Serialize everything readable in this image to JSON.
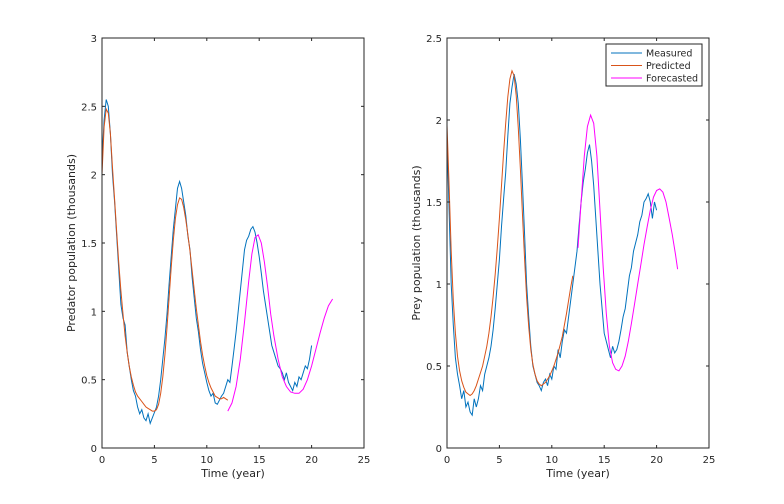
{
  "chart_data": [
    {
      "type": "line",
      "xlabel": "Time (year)",
      "ylabel": "Predator population (thousands)",
      "xlim": [
        0,
        25
      ],
      "ylim": [
        0,
        3
      ],
      "xticks": [
        "0",
        "5",
        "10",
        "15",
        "20",
        "25"
      ],
      "yticks": [
        "0",
        "0.5",
        "1",
        "1.5",
        "2",
        "2.5",
        "3"
      ],
      "grid": false,
      "legend": null,
      "series": [
        {
          "name": "Measured",
          "color": "#0072BD",
          "x": [
            0,
            0.2,
            0.4,
            0.6,
            0.8,
            1.0,
            1.2,
            1.4,
            1.6,
            1.8,
            2.0,
            2.2,
            2.4,
            2.6,
            2.8,
            3.0,
            3.2,
            3.4,
            3.6,
            3.8,
            4.0,
            4.2,
            4.4,
            4.6,
            4.8,
            5.0,
            5.2,
            5.4,
            5.6,
            5.8,
            6.0,
            6.2,
            6.4,
            6.6,
            6.8,
            7.0,
            7.2,
            7.4,
            7.6,
            7.8,
            8.0,
            8.2,
            8.4,
            8.6,
            8.8,
            9.0,
            9.2,
            9.4,
            9.6,
            9.8,
            10.0,
            10.2,
            10.4,
            10.6,
            10.8,
            11.0,
            11.2,
            11.4,
            11.6,
            11.8,
            12.0,
            12.2,
            12.4,
            12.6,
            12.8,
            13.0,
            13.2,
            13.4,
            13.6,
            13.8,
            14.0,
            14.2,
            14.4,
            14.6,
            14.8,
            15.0,
            15.2,
            15.4,
            15.6,
            15.8,
            16.0,
            16.2,
            16.4,
            16.6,
            16.8,
            17.0,
            17.2,
            17.4,
            17.6,
            17.8,
            18.0,
            18.2,
            18.4,
            18.6,
            18.8,
            19.0,
            19.2,
            19.4,
            19.6,
            19.8,
            20.0
          ],
          "y": [
            2.1,
            2.4,
            2.55,
            2.5,
            2.3,
            2.0,
            1.8,
            1.55,
            1.3,
            1.05,
            0.95,
            0.9,
            0.7,
            0.6,
            0.5,
            0.42,
            0.38,
            0.3,
            0.25,
            0.28,
            0.22,
            0.2,
            0.25,
            0.18,
            0.22,
            0.26,
            0.3,
            0.38,
            0.5,
            0.65,
            0.8,
            0.98,
            1.2,
            1.4,
            1.6,
            1.75,
            1.9,
            1.95,
            1.9,
            1.8,
            1.7,
            1.55,
            1.45,
            1.25,
            1.1,
            0.95,
            0.85,
            0.72,
            0.62,
            0.55,
            0.48,
            0.42,
            0.38,
            0.4,
            0.33,
            0.32,
            0.35,
            0.38,
            0.4,
            0.45,
            0.5,
            0.48,
            0.6,
            0.72,
            0.85,
            1.0,
            1.15,
            1.3,
            1.45,
            1.52,
            1.55,
            1.6,
            1.62,
            1.58,
            1.5,
            1.4,
            1.28,
            1.15,
            1.05,
            0.95,
            0.85,
            0.75,
            0.7,
            0.65,
            0.6,
            0.58,
            0.55,
            0.5,
            0.55,
            0.48,
            0.45,
            0.42,
            0.48,
            0.45,
            0.52,
            0.5,
            0.55,
            0.6,
            0.58,
            0.65,
            0.75
          ]
        },
        {
          "name": "Predicted",
          "color": "#D95319",
          "x": [
            0,
            0.2,
            0.4,
            0.6,
            0.8,
            1.0,
            1.2,
            1.4,
            1.6,
            1.8,
            2.0,
            2.2,
            2.4,
            2.6,
            2.8,
            3.0,
            3.2,
            3.4,
            3.6,
            3.8,
            4.0,
            4.2,
            4.4,
            4.6,
            4.8,
            5.0,
            5.2,
            5.4,
            5.6,
            5.8,
            6.0,
            6.2,
            6.4,
            6.6,
            6.8,
            7.0,
            7.2,
            7.4,
            7.6,
            7.8,
            8.0,
            8.2,
            8.4,
            8.6,
            8.8,
            9.0,
            9.2,
            9.4,
            9.6,
            9.8,
            10.0,
            10.2,
            10.4,
            10.6,
            10.8,
            11.0,
            11.2,
            11.4,
            11.6,
            11.8,
            12.0
          ],
          "y": [
            2.0,
            2.35,
            2.48,
            2.45,
            2.3,
            2.05,
            1.82,
            1.58,
            1.35,
            1.15,
            0.98,
            0.82,
            0.7,
            0.6,
            0.52,
            0.46,
            0.41,
            0.38,
            0.36,
            0.34,
            0.32,
            0.3,
            0.29,
            0.28,
            0.27,
            0.27,
            0.28,
            0.32,
            0.4,
            0.52,
            0.68,
            0.88,
            1.1,
            1.32,
            1.52,
            1.68,
            1.78,
            1.83,
            1.82,
            1.76,
            1.67,
            1.56,
            1.44,
            1.3,
            1.16,
            1.02,
            0.9,
            0.78,
            0.68,
            0.6,
            0.53,
            0.48,
            0.44,
            0.41,
            0.38,
            0.37,
            0.36,
            0.36,
            0.37,
            0.36,
            0.35
          ]
        },
        {
          "name": "Forecasted",
          "color": "#FF00FF",
          "x": [
            12,
            12.4,
            12.8,
            13.2,
            13.6,
            14.0,
            14.3,
            14.6,
            14.9,
            15.2,
            15.5,
            15.8,
            16.1,
            16.4,
            16.8,
            17.2,
            17.6,
            18.0,
            18.4,
            18.8,
            19.2,
            19.6,
            20.0,
            20.4,
            20.8,
            21.2,
            21.6,
            22.0
          ],
          "y": [
            0.27,
            0.33,
            0.45,
            0.65,
            0.92,
            1.22,
            1.42,
            1.54,
            1.56,
            1.5,
            1.36,
            1.18,
            0.98,
            0.82,
            0.65,
            0.52,
            0.45,
            0.41,
            0.4,
            0.4,
            0.43,
            0.5,
            0.6,
            0.72,
            0.84,
            0.95,
            1.04,
            1.09
          ]
        }
      ]
    },
    {
      "type": "line",
      "xlabel": "Time (year)",
      "ylabel": "Prey population (thousands)",
      "xlim": [
        0,
        25
      ],
      "ylim": [
        0,
        2.5
      ],
      "xticks": [
        "0",
        "5",
        "10",
        "15",
        "20",
        "25"
      ],
      "yticks": [
        "0",
        "0.5",
        "1",
        "1.5",
        "2",
        "2.5"
      ],
      "grid": false,
      "legend": "top-right",
      "legend_entries": [
        "Measured",
        "Predicted",
        "Forecasted"
      ],
      "series": [
        {
          "name": "Measured",
          "color": "#0072BD",
          "x": [
            0,
            0.2,
            0.4,
            0.6,
            0.8,
            1.0,
            1.2,
            1.4,
            1.6,
            1.8,
            2.0,
            2.2,
            2.4,
            2.6,
            2.8,
            3.0,
            3.2,
            3.4,
            3.6,
            3.8,
            4.0,
            4.2,
            4.4,
            4.6,
            4.8,
            5.0,
            5.2,
            5.4,
            5.6,
            5.8,
            6.0,
            6.2,
            6.4,
            6.6,
            6.8,
            7.0,
            7.2,
            7.4,
            7.6,
            7.8,
            8.0,
            8.2,
            8.4,
            8.6,
            8.8,
            9.0,
            9.2,
            9.4,
            9.6,
            9.8,
            10.0,
            10.2,
            10.4,
            10.6,
            10.8,
            11.0,
            11.2,
            11.4,
            11.6,
            11.8,
            12.0,
            12.2,
            12.4,
            12.6,
            12.8,
            13.0,
            13.2,
            13.4,
            13.6,
            13.8,
            14.0,
            14.2,
            14.4,
            14.6,
            14.8,
            15.0,
            15.2,
            15.4,
            15.6,
            15.8,
            16.0,
            16.2,
            16.4,
            16.6,
            16.8,
            17.0,
            17.2,
            17.4,
            17.6,
            17.8,
            18.0,
            18.2,
            18.4,
            18.6,
            18.8,
            19.0,
            19.2,
            19.4,
            19.6,
            19.8,
            20.0
          ],
          "y": [
            1.9,
            1.45,
            1.0,
            0.75,
            0.55,
            0.45,
            0.38,
            0.3,
            0.35,
            0.25,
            0.28,
            0.22,
            0.2,
            0.3,
            0.25,
            0.3,
            0.38,
            0.35,
            0.45,
            0.5,
            0.55,
            0.62,
            0.72,
            0.85,
            1.0,
            1.15,
            1.35,
            1.52,
            1.68,
            1.9,
            2.1,
            2.2,
            2.28,
            2.22,
            2.1,
            1.88,
            1.6,
            1.3,
            1.0,
            0.8,
            0.62,
            0.5,
            0.45,
            0.4,
            0.38,
            0.35,
            0.4,
            0.42,
            0.38,
            0.45,
            0.42,
            0.5,
            0.48,
            0.6,
            0.55,
            0.65,
            0.72,
            0.7,
            0.8,
            0.9,
            1.0,
            1.1,
            1.2,
            1.35,
            1.5,
            1.62,
            1.7,
            1.8,
            1.85,
            1.75,
            1.6,
            1.4,
            1.2,
            1.0,
            0.85,
            0.7,
            0.65,
            0.6,
            0.55,
            0.62,
            0.58,
            0.6,
            0.65,
            0.72,
            0.8,
            0.85,
            0.95,
            1.05,
            1.1,
            1.2,
            1.25,
            1.3,
            1.38,
            1.42,
            1.5,
            1.52,
            1.55,
            1.5,
            1.4,
            1.5,
            1.45
          ]
        },
        {
          "name": "Predicted",
          "color": "#D95319",
          "x": [
            0,
            0.2,
            0.4,
            0.6,
            0.8,
            1.0,
            1.2,
            1.4,
            1.6,
            1.8,
            2.0,
            2.2,
            2.4,
            2.6,
            2.8,
            3.0,
            3.2,
            3.4,
            3.6,
            3.8,
            4.0,
            4.2,
            4.4,
            4.6,
            4.8,
            5.0,
            5.2,
            5.4,
            5.6,
            5.8,
            6.0,
            6.2,
            6.4,
            6.6,
            6.8,
            7.0,
            7.2,
            7.4,
            7.6,
            7.8,
            8.0,
            8.2,
            8.4,
            8.6,
            8.8,
            9.0,
            9.2,
            9.4,
            9.6,
            9.8,
            10.0,
            10.2,
            10.4,
            10.6,
            10.8,
            11.0,
            11.2,
            11.4,
            11.6,
            11.8,
            12.0
          ],
          "y": [
            1.97,
            1.6,
            1.2,
            0.9,
            0.7,
            0.56,
            0.47,
            0.41,
            0.37,
            0.34,
            0.33,
            0.32,
            0.33,
            0.35,
            0.38,
            0.42,
            0.46,
            0.5,
            0.56,
            0.62,
            0.7,
            0.8,
            0.92,
            1.06,
            1.22,
            1.4,
            1.6,
            1.8,
            1.98,
            2.14,
            2.25,
            2.3,
            2.27,
            2.15,
            1.95,
            1.7,
            1.42,
            1.15,
            0.92,
            0.74,
            0.6,
            0.51,
            0.45,
            0.41,
            0.39,
            0.38,
            0.39,
            0.4,
            0.42,
            0.44,
            0.47,
            0.5,
            0.54,
            0.58,
            0.63,
            0.68,
            0.75,
            0.82,
            0.9,
            0.98,
            1.05
          ]
        },
        {
          "name": "Forecasted",
          "color": "#FF00FF",
          "x": [
            12.5,
            12.8,
            13.1,
            13.4,
            13.7,
            14.0,
            14.3,
            14.6,
            14.9,
            15.2,
            15.5,
            15.8,
            16.1,
            16.4,
            16.7,
            17.0,
            17.3,
            17.6,
            17.9,
            18.2,
            18.5,
            18.8,
            19.1,
            19.4,
            19.7,
            20.0,
            20.3,
            20.6,
            20.9,
            21.2,
            21.5,
            21.8,
            22.0
          ],
          "y": [
            1.22,
            1.5,
            1.78,
            1.96,
            2.03,
            1.98,
            1.78,
            1.45,
            1.1,
            0.82,
            0.62,
            0.52,
            0.48,
            0.47,
            0.5,
            0.56,
            0.65,
            0.76,
            0.88,
            1.0,
            1.12,
            1.24,
            1.35,
            1.45,
            1.53,
            1.57,
            1.58,
            1.56,
            1.5,
            1.4,
            1.3,
            1.18,
            1.09
          ]
        }
      ]
    }
  ]
}
